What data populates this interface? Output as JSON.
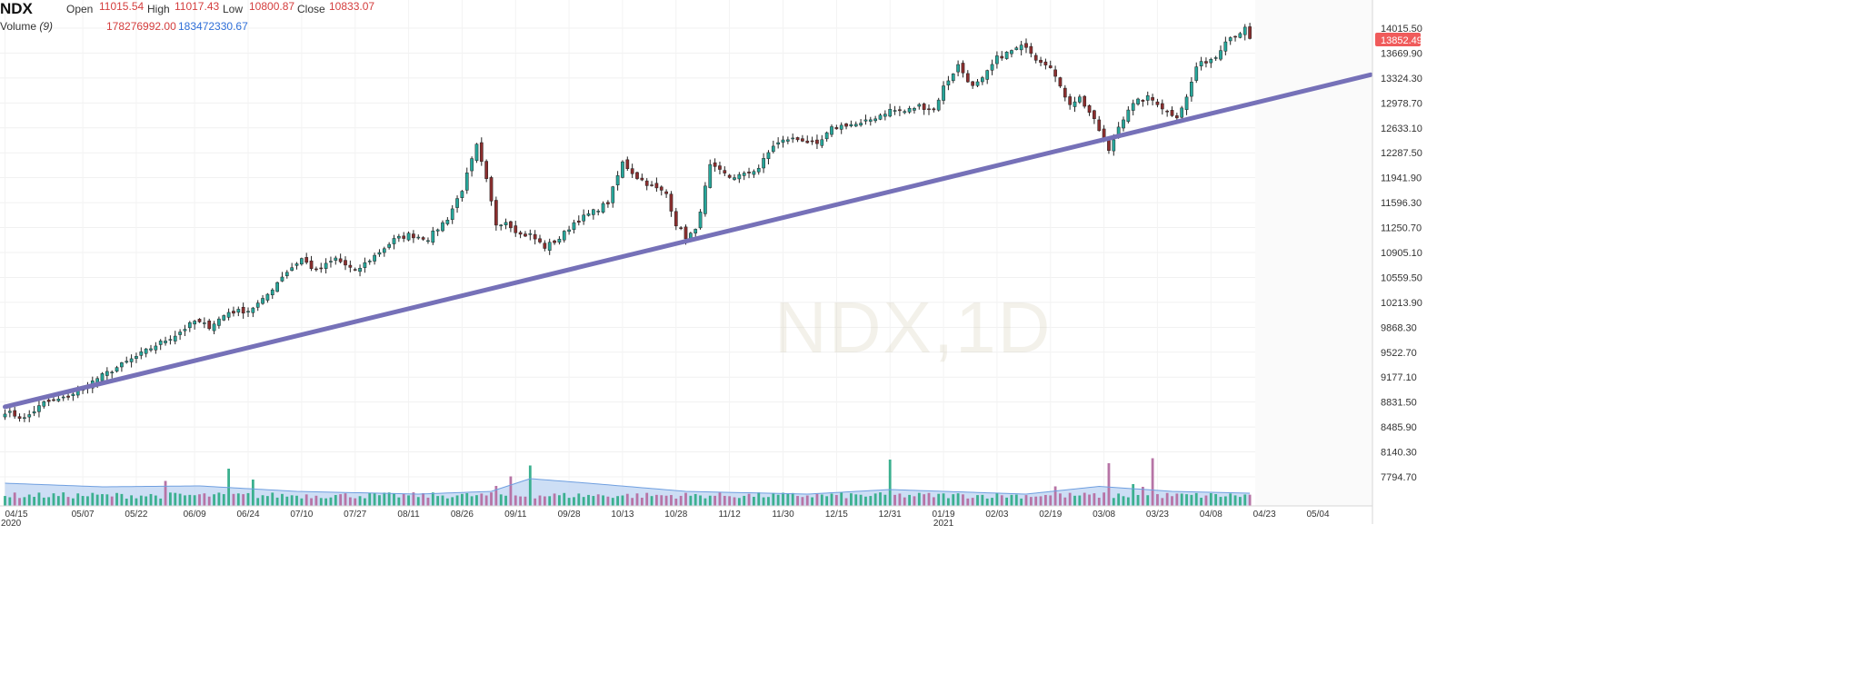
{
  "header": {
    "symbol": "NDX",
    "open_label": "Open",
    "open_value": "11015.54",
    "high_label": "High",
    "high_value": "11017.43",
    "low_label": "Low",
    "low_value": "10800.87",
    "close_label": "Close",
    "close_value": "10833.07",
    "volume_label": "Volume",
    "volume_period": "(9)",
    "volume_value": "178276992.00",
    "volume_ma_value": "183472330.67"
  },
  "watermark": "NDX,1D",
  "last_price_badge": "13852.49",
  "colors": {
    "up": "#26a69a",
    "down": "#8b2e2e",
    "badge": "#f05b5b",
    "trendline": "#7671b8",
    "vol_ma_fill": "#bcd3f2",
    "vol_ma_line": "#6f9fe0"
  },
  "chart_data": {
    "type": "candlestick",
    "y_axis_ticks": [
      "14015.50",
      "13669.90",
      "13324.30",
      "12978.70",
      "12633.10",
      "12287.50",
      "11941.90",
      "11596.30",
      "11250.70",
      "10905.10",
      "10559.50",
      "10213.90",
      "9868.30",
      "9522.70",
      "9177.10",
      "8831.50",
      "8485.90",
      "8140.30",
      "7794.70"
    ],
    "ylim": [
      7794.7,
      14015.5
    ],
    "x_axis_ticks": [
      {
        "label": "04/15",
        "sub": "2020",
        "index": 0
      },
      {
        "label": "05/07",
        "index": 16
      },
      {
        "label": "05/22",
        "index": 27
      },
      {
        "label": "06/09",
        "index": 39
      },
      {
        "label": "06/24",
        "index": 50
      },
      {
        "label": "07/10",
        "index": 61
      },
      {
        "label": "07/27",
        "index": 72
      },
      {
        "label": "08/11",
        "index": 83
      },
      {
        "label": "08/26",
        "index": 94
      },
      {
        "label": "09/11",
        "index": 105
      },
      {
        "label": "09/28",
        "index": 116
      },
      {
        "label": "10/13",
        "index": 127
      },
      {
        "label": "10/28",
        "index": 138
      },
      {
        "label": "11/12",
        "index": 149
      },
      {
        "label": "11/30",
        "index": 160
      },
      {
        "label": "12/15",
        "index": 171
      },
      {
        "label": "12/31",
        "index": 182
      },
      {
        "label": "01/19",
        "sub": "2021",
        "index": 193
      },
      {
        "label": "02/03",
        "index": 204
      },
      {
        "label": "02/19",
        "index": 215
      },
      {
        "label": "03/08",
        "index": 226
      },
      {
        "label": "03/23",
        "index": 237
      },
      {
        "label": "04/08",
        "index": 248
      },
      {
        "label": "04/23",
        "index": 259
      },
      {
        "label": "05/04",
        "index": 270
      }
    ],
    "close_anchors": [
      [
        0,
        8700
      ],
      [
        4,
        8600
      ],
      [
        8,
        8820
      ],
      [
        12,
        8880
      ],
      [
        16,
        9020
      ],
      [
        19,
        9160
      ],
      [
        23,
        9310
      ],
      [
        27,
        9460
      ],
      [
        31,
        9620
      ],
      [
        35,
        9760
      ],
      [
        39,
        9950
      ],
      [
        42,
        9880
      ],
      [
        46,
        10080
      ],
      [
        50,
        10100
      ],
      [
        53,
        10240
      ],
      [
        57,
        10580
      ],
      [
        61,
        10820
      ],
      [
        64,
        10640
      ],
      [
        68,
        10820
      ],
      [
        72,
        10640
      ],
      [
        76,
        10860
      ],
      [
        80,
        11080
      ],
      [
        83,
        11150
      ],
      [
        87,
        11100
      ],
      [
        91,
        11380
      ],
      [
        94,
        11780
      ],
      [
        97,
        12380
      ],
      [
        99,
        11900
      ],
      [
        101,
        11300
      ],
      [
        103,
        11340
      ],
      [
        106,
        11150
      ],
      [
        108,
        11150
      ],
      [
        111,
        10980
      ],
      [
        114,
        11100
      ],
      [
        117,
        11320
      ],
      [
        121,
        11470
      ],
      [
        124,
        11600
      ],
      [
        127,
        12150
      ],
      [
        130,
        11950
      ],
      [
        133,
        11820
      ],
      [
        136,
        11720
      ],
      [
        138,
        11300
      ],
      [
        140,
        11120
      ],
      [
        142,
        11200
      ],
      [
        145,
        12100
      ],
      [
        149,
        11950
      ],
      [
        152,
        11980
      ],
      [
        155,
        12080
      ],
      [
        158,
        12390
      ],
      [
        161,
        12480
      ],
      [
        164,
        12470
      ],
      [
        167,
        12380
      ],
      [
        170,
        12620
      ],
      [
        173,
        12680
      ],
      [
        176,
        12680
      ],
      [
        179,
        12780
      ],
      [
        182,
        12880
      ],
      [
        185,
        12860
      ],
      [
        188,
        12940
      ],
      [
        191,
        12880
      ],
      [
        193,
        13200
      ],
      [
        196,
        13500
      ],
      [
        199,
        13200
      ],
      [
        201,
        13300
      ],
      [
        204,
        13600
      ],
      [
        207,
        13700
      ],
      [
        210,
        13780
      ],
      [
        212,
        13600
      ],
      [
        215,
        13500
      ],
      [
        217,
        13180
      ],
      [
        219,
        12980
      ],
      [
        221,
        13050
      ],
      [
        223,
        12850
      ],
      [
        225,
        12600
      ],
      [
        227,
        12300
      ],
      [
        229,
        12650
      ],
      [
        231,
        12900
      ],
      [
        233,
        13000
      ],
      [
        235,
        13050
      ],
      [
        237,
        12980
      ],
      [
        239,
        12850
      ],
      [
        241,
        12800
      ],
      [
        243,
        13050
      ],
      [
        245,
        13480
      ],
      [
        247,
        13560
      ],
      [
        249,
        13620
      ],
      [
        251,
        13860
      ],
      [
        253,
        13920
      ],
      [
        255,
        14000
      ],
      [
        256,
        13852
      ]
    ],
    "volume": {
      "label": "Volume (9)",
      "spikes": [
        [
          33,
          5.5
        ],
        [
          46,
          8.2
        ],
        [
          51,
          5.8
        ],
        [
          101,
          4.4
        ],
        [
          104,
          6.5
        ],
        [
          108,
          8.9
        ],
        [
          182,
          10.2
        ],
        [
          216,
          4.3
        ],
        [
          227,
          9.4
        ],
        [
          232,
          4.8
        ],
        [
          234,
          4.2
        ],
        [
          236,
          10.5
        ]
      ],
      "ma_anchors": [
        [
          0,
          5.0
        ],
        [
          20,
          4.2
        ],
        [
          40,
          4.4
        ],
        [
          60,
          3.2
        ],
        [
          85,
          2.6
        ],
        [
          100,
          3.2
        ],
        [
          108,
          6.0
        ],
        [
          120,
          5.0
        ],
        [
          140,
          3.2
        ],
        [
          165,
          2.6
        ],
        [
          182,
          3.6
        ],
        [
          210,
          2.6
        ],
        [
          225,
          4.3
        ],
        [
          240,
          3.2
        ],
        [
          256,
          2.8
        ]
      ]
    },
    "trendline": {
      "from": {
        "index": 0,
        "price": 8765
      },
      "to": {
        "index": 281,
        "price": 13370
      }
    },
    "last_price": 13852.49,
    "grid": true
  }
}
